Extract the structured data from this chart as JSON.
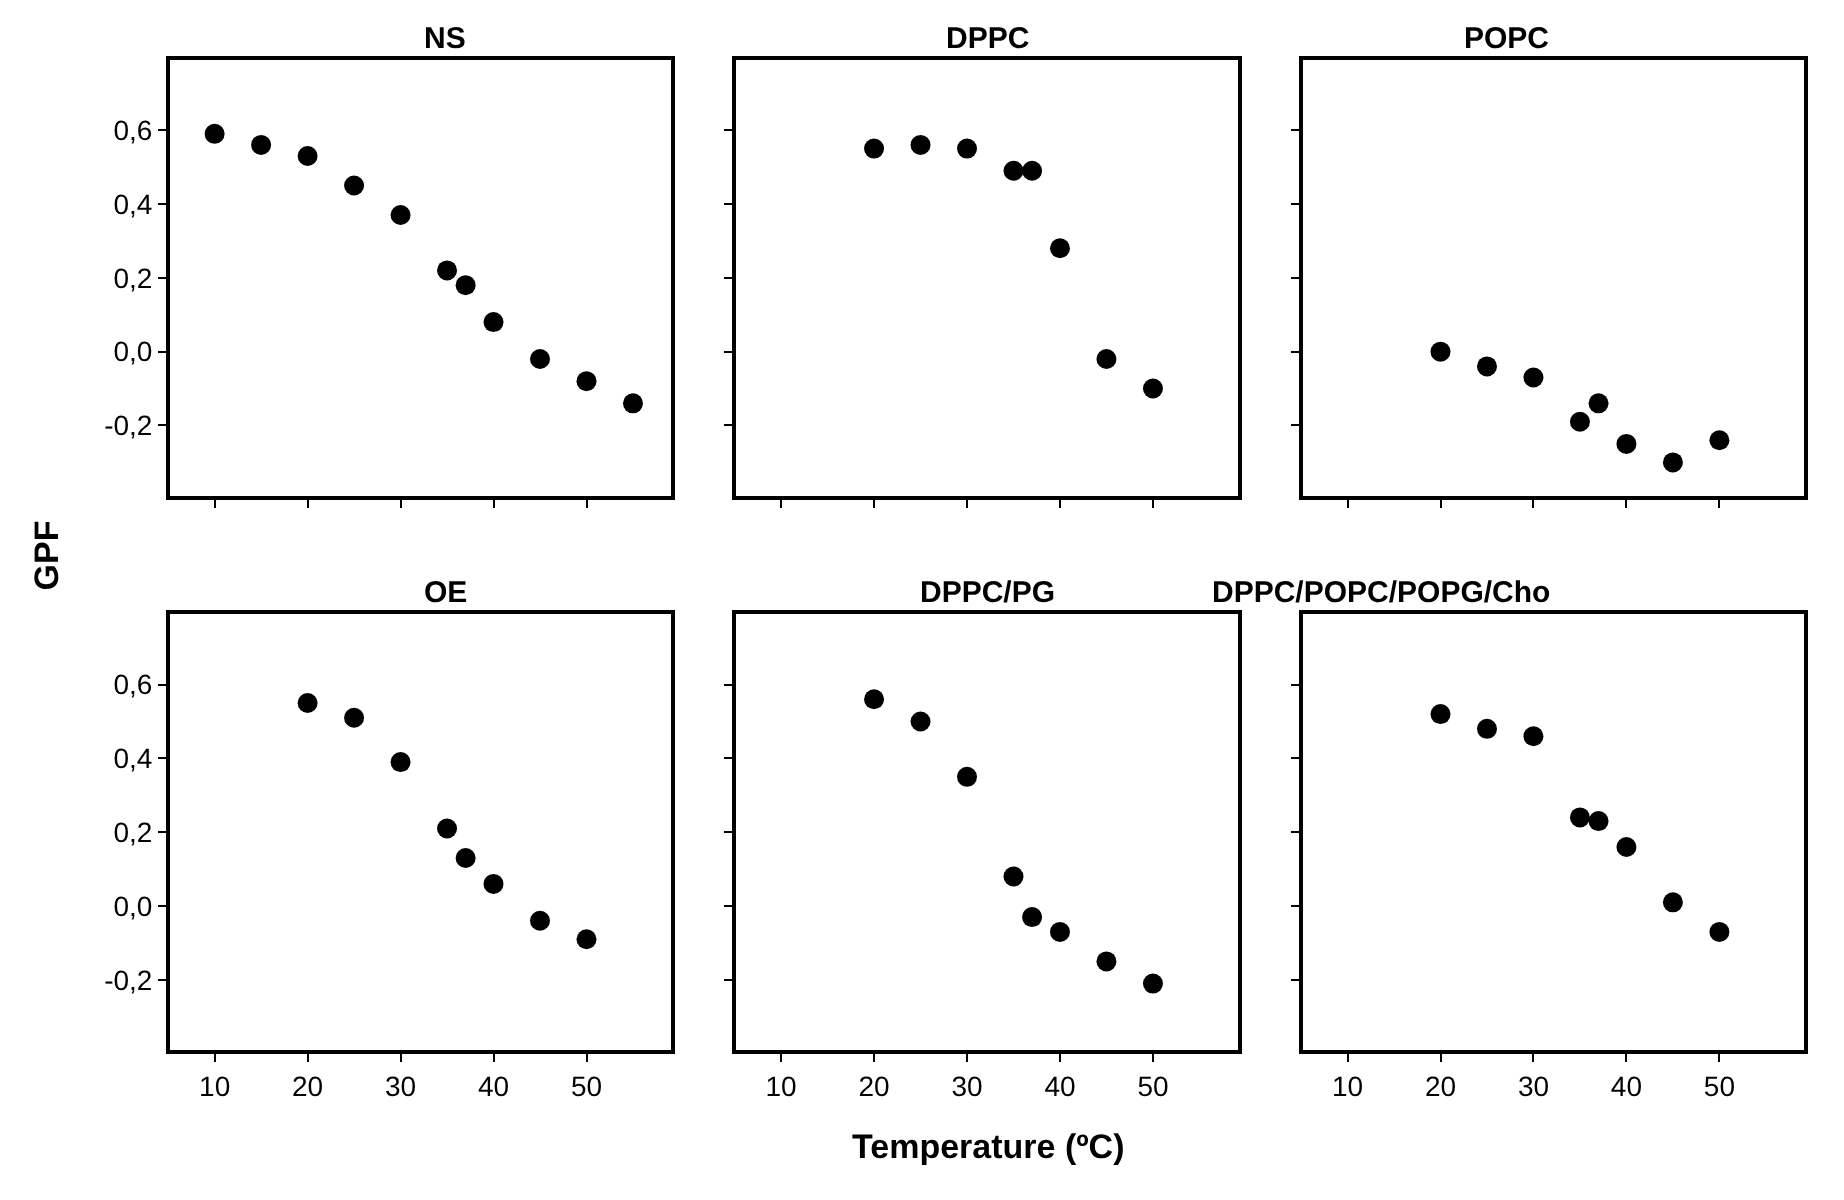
{
  "chart_data": [
    {
      "type": "scatter",
      "title": "NS",
      "ylabel": "GPF",
      "x": [
        10,
        15,
        20,
        25,
        30,
        35,
        37,
        40,
        45,
        50,
        55
      ],
      "series": [
        {
          "color": "#000000",
          "values": [
            0.59,
            0.56,
            0.53,
            0.45,
            0.37,
            0.22,
            0.18,
            0.08,
            -0.02,
            -0.08,
            -0.14
          ]
        }
      ],
      "marker": "circle",
      "xlim": [
        5.2,
        59.1
      ],
      "ylim": [
        -0.39,
        0.79
      ],
      "xticks": [
        {
          "value": 10,
          "label": null
        },
        {
          "value": 20,
          "label": null
        },
        {
          "value": 30,
          "label": null
        },
        {
          "value": 40,
          "label": null
        },
        {
          "value": 50,
          "label": null
        }
      ],
      "yticks": [
        {
          "value": -0.2,
          "label": "-0,2"
        },
        {
          "value": 0,
          "label": "0,0"
        },
        {
          "value": 0.2,
          "label": "0,2"
        },
        {
          "value": 0.4,
          "label": "0,4"
        },
        {
          "value": 0.6,
          "label": "0,6"
        }
      ],
      "tick_labels": "y"
    },
    {
      "type": "scatter",
      "title": "DPPC",
      "x": [
        20,
        25,
        30,
        35,
        37,
        40,
        45,
        50
      ],
      "series": [
        {
          "color": "#000000",
          "values": [
            0.55,
            0.56,
            0.55,
            0.49,
            0.49,
            0.28,
            -0.02,
            -0.1
          ]
        }
      ],
      "marker": "circle",
      "xlim": [
        5.2,
        59.1
      ],
      "ylim": [
        -0.39,
        0.79
      ],
      "xticks": [
        {
          "value": 10,
          "label": null
        },
        {
          "value": 20,
          "label": null
        },
        {
          "value": 30,
          "label": null
        },
        {
          "value": 40,
          "label": null
        },
        {
          "value": 50,
          "label": null
        }
      ],
      "yticks": [
        {
          "value": -0.2,
          "label": null
        },
        {
          "value": 0,
          "label": null
        },
        {
          "value": 0.2,
          "label": null
        },
        {
          "value": 0.4,
          "label": null
        },
        {
          "value": 0.6,
          "label": null
        }
      ],
      "tick_labels": false
    },
    {
      "type": "scatter",
      "title": "POPC",
      "x": [
        20,
        25,
        30,
        35,
        37,
        40,
        45,
        50
      ],
      "series": [
        {
          "color": "#000000",
          "values": [
            0.0,
            -0.04,
            -0.07,
            -0.19,
            -0.14,
            -0.25,
            -0.3,
            -0.24
          ]
        }
      ],
      "marker": "circle",
      "xlim": [
        5.2,
        59.1
      ],
      "ylim": [
        -0.39,
        0.79
      ],
      "xticks": [
        {
          "value": 10,
          "label": null
        },
        {
          "value": 20,
          "label": null
        },
        {
          "value": 30,
          "label": null
        },
        {
          "value": 40,
          "label": null
        },
        {
          "value": 50,
          "label": null
        }
      ],
      "yticks": [
        {
          "value": -0.2,
          "label": null
        },
        {
          "value": 0,
          "label": null
        },
        {
          "value": 0.2,
          "label": null
        },
        {
          "value": 0.4,
          "label": null
        },
        {
          "value": 0.6,
          "label": null
        }
      ],
      "tick_labels": false
    },
    {
      "type": "scatter",
      "title": "OE",
      "x": [
        20,
        25,
        30,
        35,
        37,
        40,
        45,
        50
      ],
      "series": [
        {
          "color": "#000000",
          "values": [
            0.55,
            0.51,
            0.39,
            0.21,
            0.13,
            0.06,
            -0.04,
            -0.09
          ]
        }
      ],
      "marker": "circle",
      "xlim": [
        5.2,
        59.1
      ],
      "ylim": [
        -0.39,
        0.79
      ],
      "xticks": [
        10,
        20,
        30,
        40,
        50
      ],
      "yticks": [
        {
          "value": -0.2,
          "label": "-0,2"
        },
        {
          "value": 0,
          "label": "0,0"
        },
        {
          "value": 0.2,
          "label": "0,2"
        },
        {
          "value": 0.4,
          "label": "0,4"
        },
        {
          "value": 0.6,
          "label": "0,6"
        }
      ]
    },
    {
      "type": "scatter",
      "title": "DPPC/PG",
      "xlabel": "Temperature (ºC)",
      "x": [
        20,
        25,
        30,
        35,
        37,
        40,
        45,
        50
      ],
      "series": [
        {
          "color": "#000000",
          "values": [
            0.56,
            0.5,
            0.35,
            0.08,
            -0.03,
            -0.07,
            -0.15,
            -0.21
          ]
        }
      ],
      "marker": "circle",
      "xlim": [
        5.2,
        59.1
      ],
      "ylim": [
        -0.39,
        0.79
      ],
      "xticks": [
        10,
        20,
        30,
        40,
        50
      ],
      "yticks": [
        {
          "value": -0.2,
          "label": null
        },
        {
          "value": 0,
          "label": null
        },
        {
          "value": 0.2,
          "label": null
        },
        {
          "value": 0.4,
          "label": null
        },
        {
          "value": 0.6,
          "label": null
        }
      ],
      "tick_labels": "x"
    },
    {
      "type": "scatter",
      "title": "DPPC/POPC/POPG/Cho",
      "x": [
        20,
        25,
        30,
        35,
        37,
        40,
        45,
        50
      ],
      "series": [
        {
          "color": "#000000",
          "values": [
            0.52,
            0.48,
            0.46,
            0.24,
            0.23,
            0.16,
            0.01,
            -0.07
          ]
        }
      ],
      "marker": "circle",
      "xlim": [
        5.2,
        59.1
      ],
      "ylim": [
        -0.39,
        0.79
      ],
      "xticks": [
        10,
        20,
        30,
        40,
        50
      ],
      "yticks": [
        {
          "value": -0.2,
          "label": null
        },
        {
          "value": 0,
          "label": null
        },
        {
          "value": 0.2,
          "label": null
        },
        {
          "value": 0.4,
          "label": null
        },
        {
          "value": 0.6,
          "label": null
        }
      ],
      "tick_labels": "x"
    }
  ]
}
